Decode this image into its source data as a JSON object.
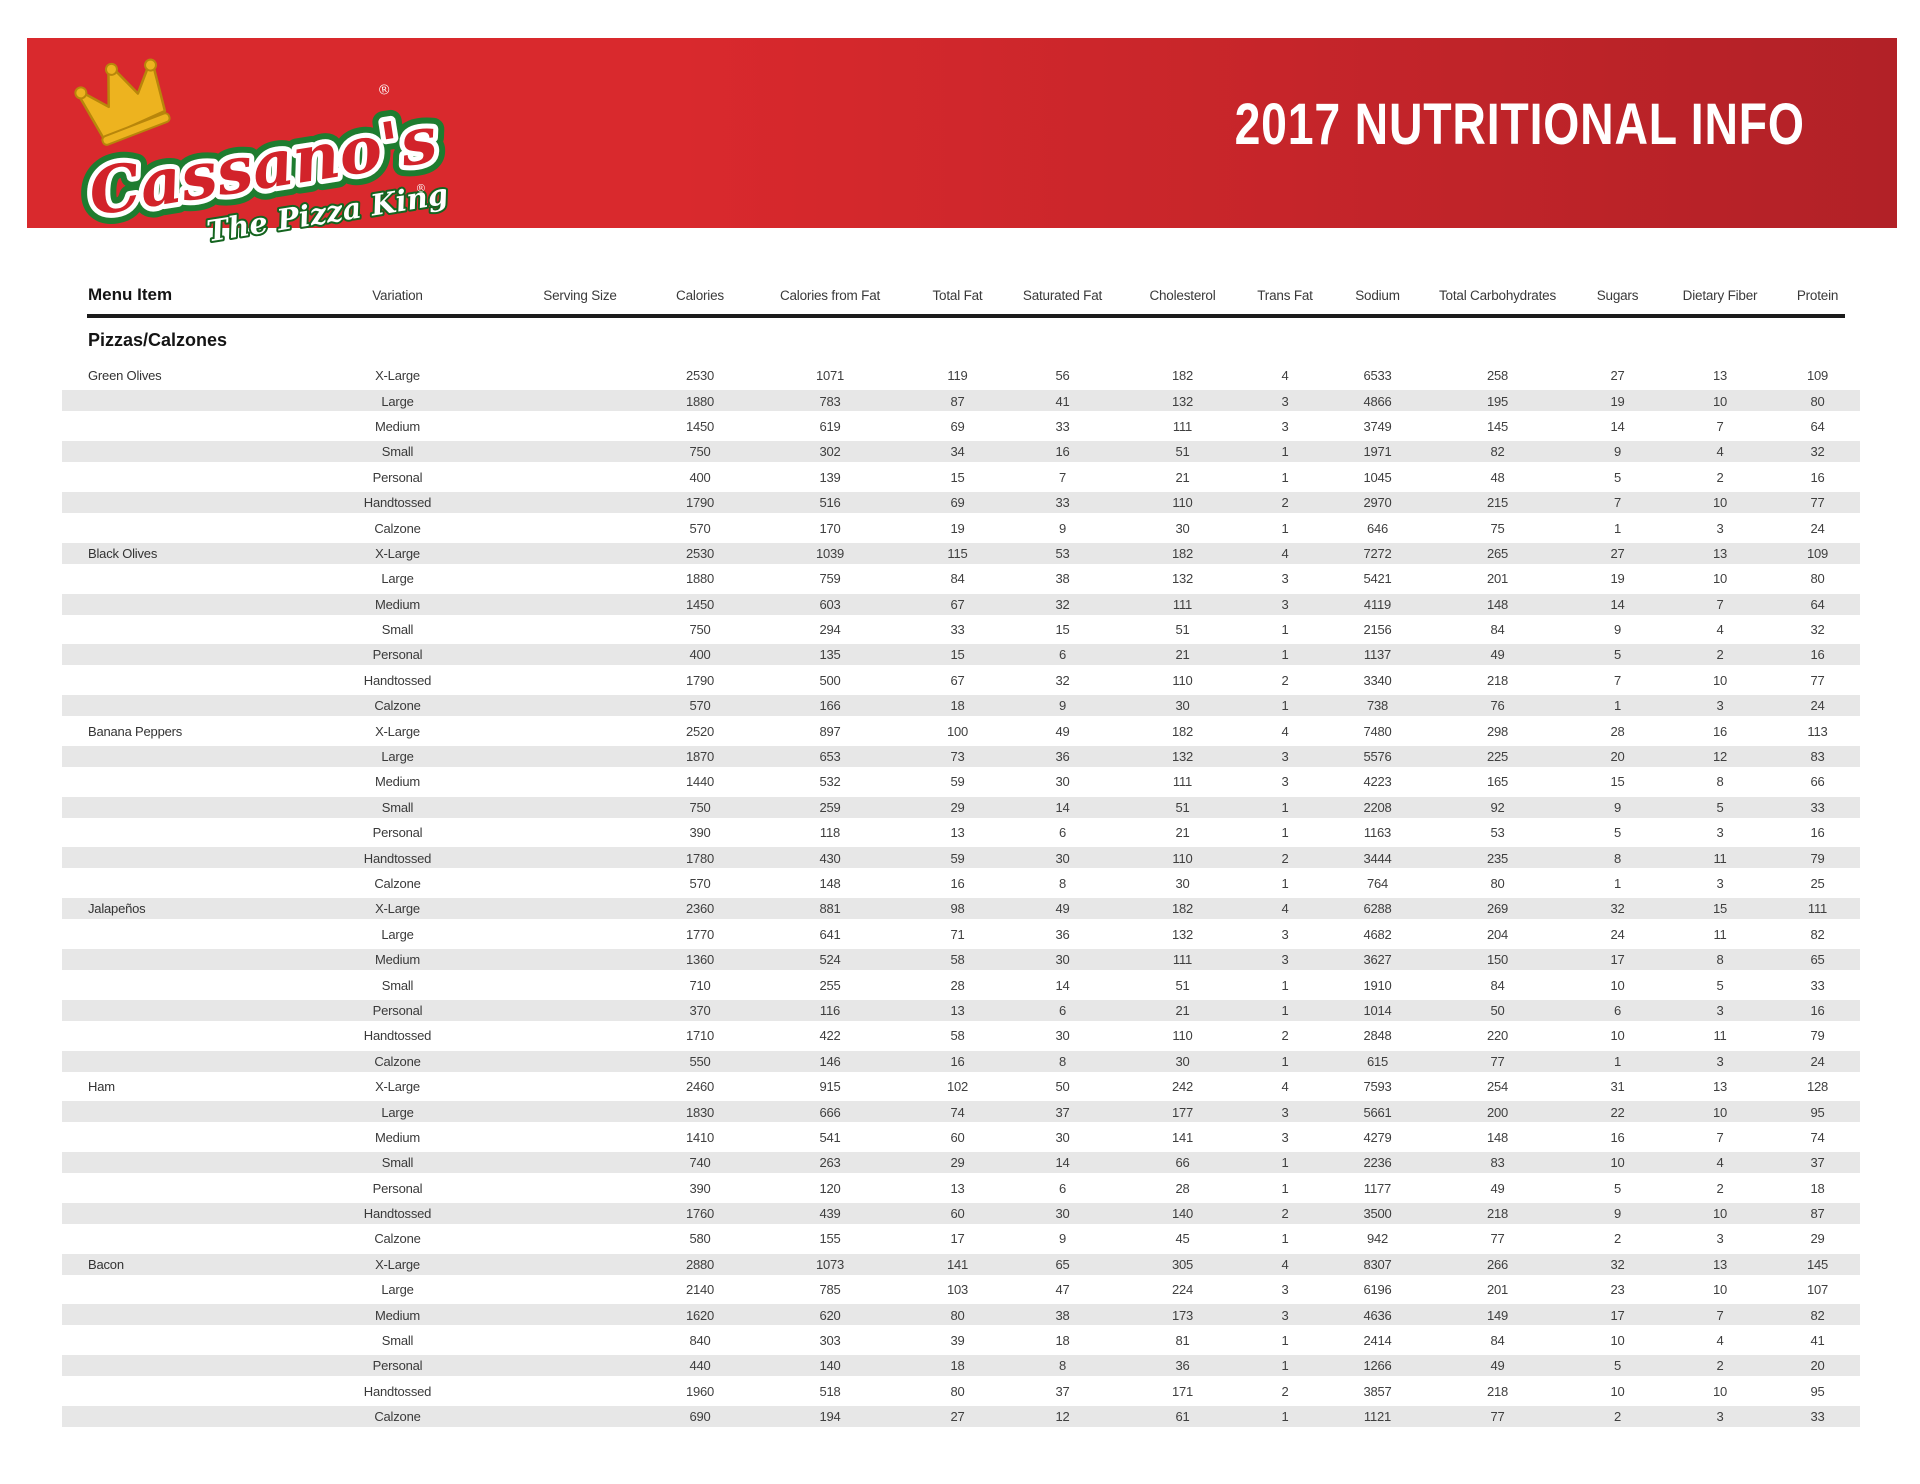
{
  "banner": {
    "title": "2017 NUTRITIONAL INFO",
    "bg_left": "#d9292d",
    "bg_right": "#b22127",
    "logo": {
      "brand": "Cassano's",
      "tagline": "The Pizza King",
      "registered_mark": "®",
      "crown_color": "#edb31f",
      "crown_outline": "#b8860b",
      "script_red": "#d2232a",
      "outline_green": "#1e7c2f"
    }
  },
  "table": {
    "stripe_color": "#e7e7e7",
    "columns": [
      "Menu Item",
      "Variation",
      "Serving Size",
      "Calories",
      "Calories from Fat",
      "Total Fat",
      "Saturated Fat",
      "Cholesterol",
      "Trans Fat",
      "Sodium",
      "Total Carbohydrates",
      "Sugars",
      "Dietary Fiber",
      "Protein"
    ],
    "section": "Pizzas/Calzones",
    "groups": [
      {
        "item": "Green Olives",
        "rows": [
          {
            "variation": "X-Large",
            "serving_size": "",
            "values": [
              2530,
              1071,
              119,
              56,
              182,
              4,
              6533,
              258,
              27,
              13,
              109
            ]
          },
          {
            "variation": "Large",
            "serving_size": "",
            "values": [
              1880,
              783,
              87,
              41,
              132,
              3,
              4866,
              195,
              19,
              10,
              80
            ]
          },
          {
            "variation": "Medium",
            "serving_size": "",
            "values": [
              1450,
              619,
              69,
              33,
              111,
              3,
              3749,
              145,
              14,
              7,
              64
            ]
          },
          {
            "variation": "Small",
            "serving_size": "",
            "values": [
              750,
              302,
              34,
              16,
              51,
              1,
              1971,
              82,
              9,
              4,
              32
            ]
          },
          {
            "variation": "Personal",
            "serving_size": "",
            "values": [
              400,
              139,
              15,
              7,
              21,
              1,
              1045,
              48,
              5,
              2,
              16
            ]
          },
          {
            "variation": "Handtossed",
            "serving_size": "",
            "values": [
              1790,
              516,
              69,
              33,
              110,
              2,
              2970,
              215,
              7,
              10,
              77
            ]
          },
          {
            "variation": "Calzone",
            "serving_size": "",
            "values": [
              570,
              170,
              19,
              9,
              30,
              1,
              646,
              75,
              1,
              3,
              24
            ]
          }
        ]
      },
      {
        "item": "Black Olives",
        "rows": [
          {
            "variation": "X-Large",
            "serving_size": "",
            "values": [
              2530,
              1039,
              115,
              53,
              182,
              4,
              7272,
              265,
              27,
              13,
              109
            ]
          },
          {
            "variation": "Large",
            "serving_size": "",
            "values": [
              1880,
              759,
              84,
              38,
              132,
              3,
              5421,
              201,
              19,
              10,
              80
            ]
          },
          {
            "variation": "Medium",
            "serving_size": "",
            "values": [
              1450,
              603,
              67,
              32,
              111,
              3,
              4119,
              148,
              14,
              7,
              64
            ]
          },
          {
            "variation": "Small",
            "serving_size": "",
            "values": [
              750,
              294,
              33,
              15,
              51,
              1,
              2156,
              84,
              9,
              4,
              32
            ]
          },
          {
            "variation": "Personal",
            "serving_size": "",
            "values": [
              400,
              135,
              15,
              6,
              21,
              1,
              1137,
              49,
              5,
              2,
              16
            ]
          },
          {
            "variation": "Handtossed",
            "serving_size": "",
            "values": [
              1790,
              500,
              67,
              32,
              110,
              2,
              3340,
              218,
              7,
              10,
              77
            ]
          },
          {
            "variation": "Calzone",
            "serving_size": "",
            "values": [
              570,
              166,
              18,
              9,
              30,
              1,
              738,
              76,
              1,
              3,
              24
            ]
          }
        ]
      },
      {
        "item": "Banana Peppers",
        "rows": [
          {
            "variation": "X-Large",
            "serving_size": "",
            "values": [
              2520,
              897,
              100,
              49,
              182,
              4,
              7480,
              298,
              28,
              16,
              113
            ]
          },
          {
            "variation": "Large",
            "serving_size": "",
            "values": [
              1870,
              653,
              73,
              36,
              132,
              3,
              5576,
              225,
              20,
              12,
              83
            ]
          },
          {
            "variation": "Medium",
            "serving_size": "",
            "values": [
              1440,
              532,
              59,
              30,
              111,
              3,
              4223,
              165,
              15,
              8,
              66
            ]
          },
          {
            "variation": "Small",
            "serving_size": "",
            "values": [
              750,
              259,
              29,
              14,
              51,
              1,
              2208,
              92,
              9,
              5,
              33
            ]
          },
          {
            "variation": "Personal",
            "serving_size": "",
            "values": [
              390,
              118,
              13,
              6,
              21,
              1,
              1163,
              53,
              5,
              3,
              16
            ]
          },
          {
            "variation": "Handtossed",
            "serving_size": "",
            "values": [
              1780,
              430,
              59,
              30,
              110,
              2,
              3444,
              235,
              8,
              11,
              79
            ]
          },
          {
            "variation": "Calzone",
            "serving_size": "",
            "values": [
              570,
              148,
              16,
              8,
              30,
              1,
              764,
              80,
              1,
              3,
              25
            ]
          }
        ]
      },
      {
        "item": "Jalapeños",
        "rows": [
          {
            "variation": "X-Large",
            "serving_size": "",
            "values": [
              2360,
              881,
              98,
              49,
              182,
              4,
              6288,
              269,
              32,
              15,
              111
            ]
          },
          {
            "variation": "Large",
            "serving_size": "",
            "values": [
              1770,
              641,
              71,
              36,
              132,
              3,
              4682,
              204,
              24,
              11,
              82
            ]
          },
          {
            "variation": "Medium",
            "serving_size": "",
            "values": [
              1360,
              524,
              58,
              30,
              111,
              3,
              3627,
              150,
              17,
              8,
              65
            ]
          },
          {
            "variation": "Small",
            "serving_size": "",
            "values": [
              710,
              255,
              28,
              14,
              51,
              1,
              1910,
              84,
              10,
              5,
              33
            ]
          },
          {
            "variation": "Personal",
            "serving_size": "",
            "values": [
              370,
              116,
              13,
              6,
              21,
              1,
              1014,
              50,
              6,
              3,
              16
            ]
          },
          {
            "variation": "Handtossed",
            "serving_size": "",
            "values": [
              1710,
              422,
              58,
              30,
              110,
              2,
              2848,
              220,
              10,
              11,
              79
            ]
          },
          {
            "variation": "Calzone",
            "serving_size": "",
            "values": [
              550,
              146,
              16,
              8,
              30,
              1,
              615,
              77,
              1,
              3,
              24
            ]
          }
        ]
      },
      {
        "item": "Ham",
        "rows": [
          {
            "variation": "X-Large",
            "serving_size": "",
            "values": [
              2460,
              915,
              102,
              50,
              242,
              4,
              7593,
              254,
              31,
              13,
              128
            ]
          },
          {
            "variation": "Large",
            "serving_size": "",
            "values": [
              1830,
              666,
              74,
              37,
              177,
              3,
              5661,
              200,
              22,
              10,
              95
            ]
          },
          {
            "variation": "Medium",
            "serving_size": "",
            "values": [
              1410,
              541,
              60,
              30,
              141,
              3,
              4279,
              148,
              16,
              7,
              74
            ]
          },
          {
            "variation": "Small",
            "serving_size": "",
            "values": [
              740,
              263,
              29,
              14,
              66,
              1,
              2236,
              83,
              10,
              4,
              37
            ]
          },
          {
            "variation": "Personal",
            "serving_size": "",
            "values": [
              390,
              120,
              13,
              6,
              28,
              1,
              1177,
              49,
              5,
              2,
              18
            ]
          },
          {
            "variation": "Handtossed",
            "serving_size": "",
            "values": [
              1760,
              439,
              60,
              30,
              140,
              2,
              3500,
              218,
              9,
              10,
              87
            ]
          },
          {
            "variation": "Calzone",
            "serving_size": "",
            "values": [
              580,
              155,
              17,
              9,
              45,
              1,
              942,
              77,
              2,
              3,
              29
            ]
          }
        ]
      },
      {
        "item": "Bacon",
        "rows": [
          {
            "variation": "X-Large",
            "serving_size": "",
            "values": [
              2880,
              1073,
              141,
              65,
              305,
              4,
              8307,
              266,
              32,
              13,
              145
            ]
          },
          {
            "variation": "Large",
            "serving_size": "",
            "values": [
              2140,
              785,
              103,
              47,
              224,
              3,
              6196,
              201,
              23,
              10,
              107
            ]
          },
          {
            "variation": "Medium",
            "serving_size": "",
            "values": [
              1620,
              620,
              80,
              38,
              173,
              3,
              4636,
              149,
              17,
              7,
              82
            ]
          },
          {
            "variation": "Small",
            "serving_size": "",
            "values": [
              840,
              303,
              39,
              18,
              81,
              1,
              2414,
              84,
              10,
              4,
              41
            ]
          },
          {
            "variation": "Personal",
            "serving_size": "",
            "values": [
              440,
              140,
              18,
              8,
              36,
              1,
              1266,
              49,
              5,
              2,
              20
            ]
          },
          {
            "variation": "Handtossed",
            "serving_size": "",
            "values": [
              1960,
              518,
              80,
              37,
              171,
              2,
              3857,
              218,
              10,
              10,
              95
            ]
          },
          {
            "variation": "Calzone",
            "serving_size": "",
            "values": [
              690,
              194,
              27,
              12,
              61,
              1,
              1121,
              77,
              2,
              3,
              33
            ]
          }
        ]
      }
    ]
  }
}
